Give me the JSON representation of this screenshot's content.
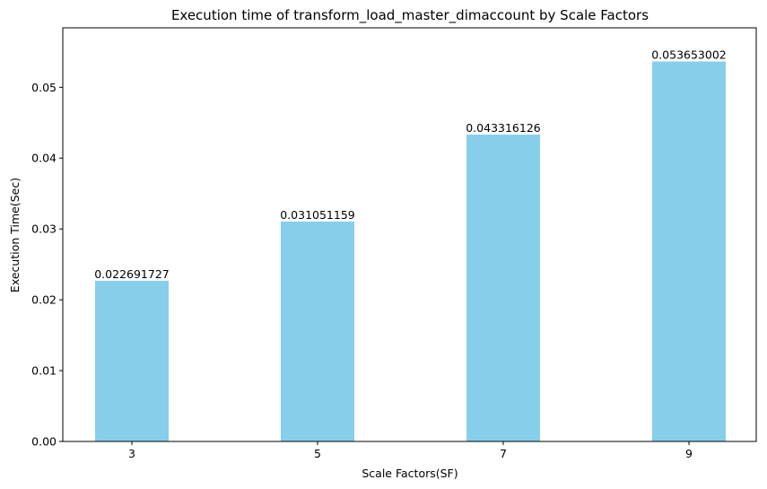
{
  "chart_data": {
    "type": "bar",
    "title": "Execution time of transform_load_master_dimaccount by Scale Factors",
    "xlabel": "Scale Factors(SF)",
    "ylabel": "Execution Time(Sec)",
    "categories": [
      "3",
      "5",
      "7",
      "9"
    ],
    "values": [
      0.022691727,
      0.031051159,
      0.043316126,
      0.053653002
    ],
    "value_labels": [
      "0.022691727",
      "0.031051159",
      "0.043316126",
      "0.053653002"
    ],
    "ylim": [
      0,
      0.0584
    ],
    "yticks": [
      0,
      0.01,
      0.02,
      0.03,
      0.04,
      0.05
    ],
    "ytick_labels": [
      "0.00",
      "0.01",
      "0.02",
      "0.03",
      "0.04",
      "0.05"
    ],
    "bar_color": "#87CEEB",
    "grid": false
  }
}
